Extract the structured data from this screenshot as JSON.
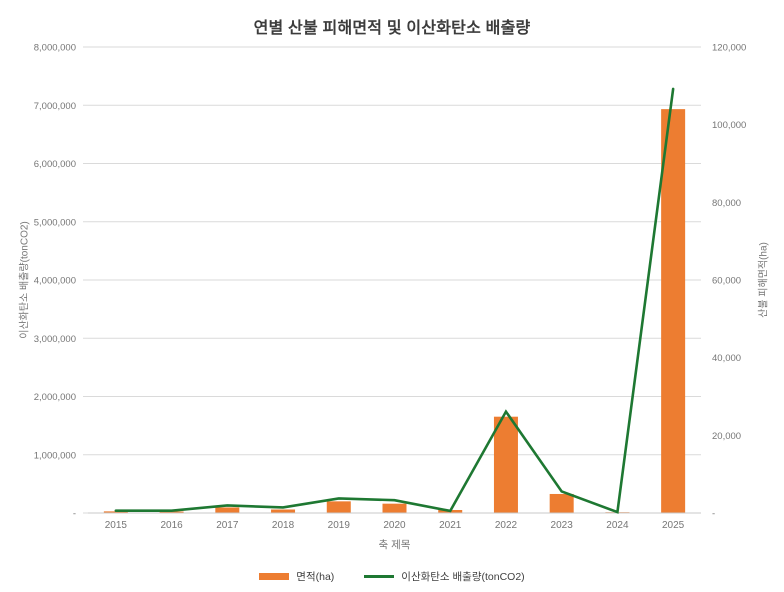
{
  "title": "연별 산불 피해면적 및 이산화탄소 배출량",
  "colors": {
    "bar": "#ED7D31",
    "line": "#1E7832",
    "gridline": "#DADADA",
    "axis_line": "#C8C8C8",
    "tick_text": "#767676",
    "title_text": "#3C3C3C",
    "legend_text": "#3F3F3F"
  },
  "chart_data": {
    "type": "bar+line combo",
    "title": "연별 산불 피해면적 및 이산화탄소 배출량",
    "xlabel": "축 제목",
    "ylabel_left": "이산화탄소 배출량(tonCO2)",
    "ylabel_right": "산불 피해면적(ha)",
    "categories": [
      "2015",
      "2016",
      "2017",
      "2018",
      "2019",
      "2020",
      "2021",
      "2022",
      "2023",
      "2024",
      "2025"
    ],
    "series": [
      {
        "name": "면적(ha)",
        "type": "bar",
        "axis": "right",
        "color": "#ED7D31",
        "values": [
          420,
          380,
          1430,
          900,
          3000,
          2400,
          770,
          24800,
          4900,
          200,
          104000
        ]
      },
      {
        "name": "이산화탄소 배출량(tonCO2)",
        "type": "line",
        "axis": "left",
        "color": "#1E7832",
        "values": [
          40000,
          40000,
          130000,
          95000,
          250000,
          220000,
          35000,
          1740000,
          370000,
          15000,
          7280000
        ]
      }
    ],
    "ylim_left": [
      0,
      8000000
    ],
    "ylim_right": [
      0,
      120000
    ],
    "left_tick_step": 1000000,
    "right_tick_step": 20000,
    "left_tick_labels": [
      "-",
      "1,000,000",
      "2,000,000",
      "3,000,000",
      "4,000,000",
      "5,000,000",
      "6,000,000",
      "7,000,000",
      "8,000,000"
    ],
    "right_tick_labels": [
      "-",
      "20,000",
      "40,000",
      "60,000",
      "80,000",
      "100,000",
      "120,000"
    ],
    "grid": "horizontal",
    "legend_position": "bottom"
  },
  "legend": {
    "items": [
      {
        "label": "면적(ha)",
        "swatch": "bar"
      },
      {
        "label": "이산화탄소 배출량(tonCO2)",
        "swatch": "line"
      }
    ]
  }
}
